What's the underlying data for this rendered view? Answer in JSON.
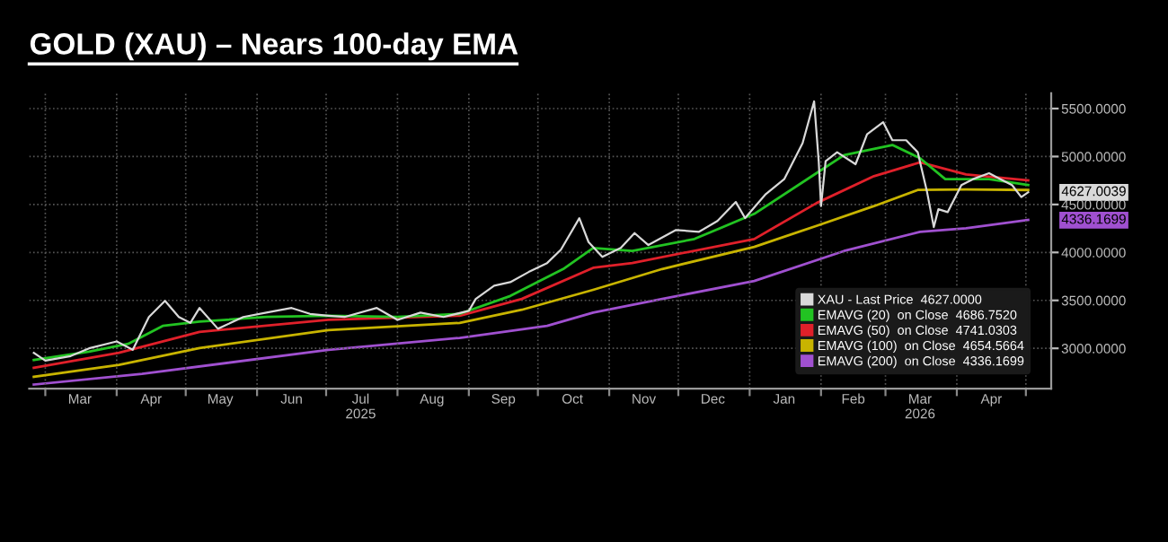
{
  "chart_data": {
    "type": "line",
    "title": "GOLD (XAU) – Nears 100-day EMA",
    "legend": "bottom right",
    "grid": true,
    "marker": "none",
    "line_style": "solid",
    "xlim": [
      "2025-02-22",
      "2026-05-12"
    ],
    "xticks": [
      {
        "value": "2025-03-01",
        "label": null
      },
      {
        "value": "2025-04-01",
        "label": null
      },
      {
        "value": "2025-05-01",
        "label": null
      },
      {
        "value": "2025-06-01",
        "label": null
      },
      {
        "value": "2025-07-01",
        "label": null
      },
      {
        "value": "2025-08-01",
        "label": null
      },
      {
        "value": "2025-09-01",
        "label": null
      },
      {
        "value": "2025-10-01",
        "label": null
      },
      {
        "value": "2025-11-01",
        "label": null
      },
      {
        "value": "2025-12-01",
        "label": null
      },
      {
        "value": "2026-01-01",
        "label": null
      },
      {
        "value": "2026-02-01",
        "label": null
      },
      {
        "value": "2026-03-01",
        "label": null
      },
      {
        "value": "2026-04-01",
        "label": null
      },
      {
        "value": "2026-05-01",
        "label": null
      },
      {
        "value": "2025-03-16",
        "label": "Mar"
      },
      {
        "value": "2025-04-16",
        "label": "Apr"
      },
      {
        "value": "2025-05-16",
        "label": "May"
      },
      {
        "value": "2025-06-16",
        "label": "Jun"
      },
      {
        "value": "2025-07-16",
        "label": "Jul\n2025"
      },
      {
        "value": "2025-08-16",
        "label": "Aug"
      },
      {
        "value": "2025-09-16",
        "label": "Sep"
      },
      {
        "value": "2025-10-16",
        "label": "Oct"
      },
      {
        "value": "2025-11-16",
        "label": "Nov"
      },
      {
        "value": "2025-12-16",
        "label": "Dec"
      },
      {
        "value": "2026-01-16",
        "label": "Jan"
      },
      {
        "value": "2026-02-15",
        "label": "Feb"
      },
      {
        "value": "2026-03-16",
        "label": "Mar\n2026"
      },
      {
        "value": "2026-04-16",
        "label": "Apr"
      }
    ],
    "ylim": [
      2580,
      5660
    ],
    "yticks": [
      {
        "value": 3000,
        "label": "3000.0000"
      },
      {
        "value": 3500,
        "label": "3500.0000"
      },
      {
        "value": 4000,
        "label": "4000.0000"
      },
      {
        "value": 4500,
        "label": "4500.0000"
      },
      {
        "value": 5000,
        "label": "5000.0000"
      },
      {
        "value": 5500,
        "label": "5500.0000"
      }
    ],
    "annotations": [
      {
        "text": "4627.0039",
        "x": "2026-05-02",
        "y": 4627
      },
      {
        "text": "4336.1699",
        "x": "2026-05-02",
        "y": 4336
      }
    ],
    "series": [
      {
        "name": "XAU - Last Price  4627.0000",
        "color": "#d9d9d9",
        "x": [
          "2025-02-24",
          "2025-03-01",
          "2025-03-12",
          "2025-03-20",
          "2025-04-01",
          "2025-04-08",
          "2025-04-15",
          "2025-04-22",
          "2025-04-28",
          "2025-05-03",
          "2025-05-07",
          "2025-05-15",
          "2025-05-26",
          "2025-06-05",
          "2025-06-16",
          "2025-06-24",
          "2025-07-02",
          "2025-07-09",
          "2025-07-23",
          "2025-08-01",
          "2025-08-11",
          "2025-08-21",
          "2025-09-01",
          "2025-09-04",
          "2025-09-12",
          "2025-09-19",
          "2025-09-27",
          "2025-10-05",
          "2025-10-11",
          "2025-10-19",
          "2025-10-23",
          "2025-10-29",
          "2025-11-06",
          "2025-11-12",
          "2025-11-18",
          "2025-11-30",
          "2025-12-10",
          "2025-12-18",
          "2025-12-26",
          "2025-12-30",
          "2026-01-08",
          "2026-01-16",
          "2026-01-24",
          "2026-01-29",
          "2026-01-31",
          "2026-02-01",
          "2026-02-03",
          "2026-02-08",
          "2026-02-16",
          "2026-02-21",
          "2026-02-28",
          "2026-03-04",
          "2026-03-10",
          "2026-03-15",
          "2026-03-19",
          "2026-03-22",
          "2026-03-24",
          "2026-03-28",
          "2026-04-03",
          "2026-04-08",
          "2026-04-15",
          "2026-04-20",
          "2026-04-25",
          "2026-04-29",
          "2026-05-02"
        ],
        "values": [
          2953,
          2872,
          2919,
          3000,
          3072,
          2985,
          3327,
          3496,
          3327,
          3265,
          3421,
          3204,
          3327,
          3372,
          3421,
          3359,
          3340,
          3327,
          3421,
          3297,
          3372,
          3327,
          3391,
          3515,
          3653,
          3690,
          3796,
          3889,
          4028,
          4357,
          4108,
          3953,
          4047,
          4202,
          4077,
          4234,
          4215,
          4328,
          4526,
          4358,
          4608,
          4764,
          5139,
          5575,
          4951,
          4483,
          4951,
          5045,
          4920,
          5232,
          5358,
          5170,
          5170,
          5045,
          4638,
          4264,
          4451,
          4420,
          4702,
          4764,
          4826,
          4764,
          4702,
          4577,
          4627
        ]
      },
      {
        "name": "EMAVG (20)  on Close  4686.7520",
        "color": "#22c322",
        "x": [
          "2025-02-24",
          "2025-03-20",
          "2025-04-06",
          "2025-04-21",
          "2025-05-07",
          "2025-06-05",
          "2025-07-02",
          "2025-08-01",
          "2025-08-28",
          "2025-09-19",
          "2025-10-12",
          "2025-10-25",
          "2025-11-11",
          "2025-12-08",
          "2026-01-03",
          "2026-01-30",
          "2026-02-11",
          "2026-03-04",
          "2026-03-16",
          "2026-03-27",
          "2026-04-15",
          "2026-05-02"
        ],
        "values": [
          2878,
          2966,
          3047,
          3234,
          3278,
          3327,
          3340,
          3327,
          3359,
          3546,
          3827,
          4047,
          4015,
          4140,
          4402,
          4826,
          5014,
          5120,
          4983,
          4764,
          4764,
          4702
        ]
      },
      {
        "name": "EMAVG (50)  on Close  4741.0303",
        "color": "#e0202a",
        "x": [
          "2025-02-24",
          "2025-04-02",
          "2025-05-07",
          "2025-07-02",
          "2025-08-28",
          "2025-09-24",
          "2025-10-25",
          "2025-11-11",
          "2026-01-03",
          "2026-01-30",
          "2026-02-24",
          "2026-03-16",
          "2026-04-05",
          "2026-05-02"
        ],
        "values": [
          2797,
          2953,
          3171,
          3297,
          3340,
          3515,
          3840,
          3890,
          4140,
          4514,
          4795,
          4939,
          4814,
          4751
        ]
      },
      {
        "name": "EMAVG (100)  on Close  4654.5664",
        "color": "#c8b400",
        "x": [
          "2025-02-24",
          "2025-04-02",
          "2025-05-07",
          "2025-07-02",
          "2025-08-28",
          "2025-09-24",
          "2025-10-25",
          "2025-11-24",
          "2026-01-03",
          "2026-01-30",
          "2026-02-24",
          "2026-03-15",
          "2026-04-05",
          "2026-05-02"
        ],
        "values": [
          2703,
          2828,
          3003,
          3190,
          3265,
          3402,
          3610,
          3827,
          4058,
          4277,
          4483,
          4651,
          4657,
          4651
        ]
      },
      {
        "name": "EMAVG (200)  on Close  4336.1699",
        "color": "#a050d0",
        "x": [
          "2025-02-24",
          "2025-04-12",
          "2025-07-02",
          "2025-08-28",
          "2025-10-05",
          "2025-10-25",
          "2025-11-24",
          "2026-01-03",
          "2026-02-11",
          "2026-03-16",
          "2026-04-05",
          "2026-05-02"
        ],
        "values": [
          2622,
          2734,
          2984,
          3109,
          3234,
          3372,
          3515,
          3702,
          4015,
          4215,
          4252,
          4339
        ]
      }
    ]
  }
}
